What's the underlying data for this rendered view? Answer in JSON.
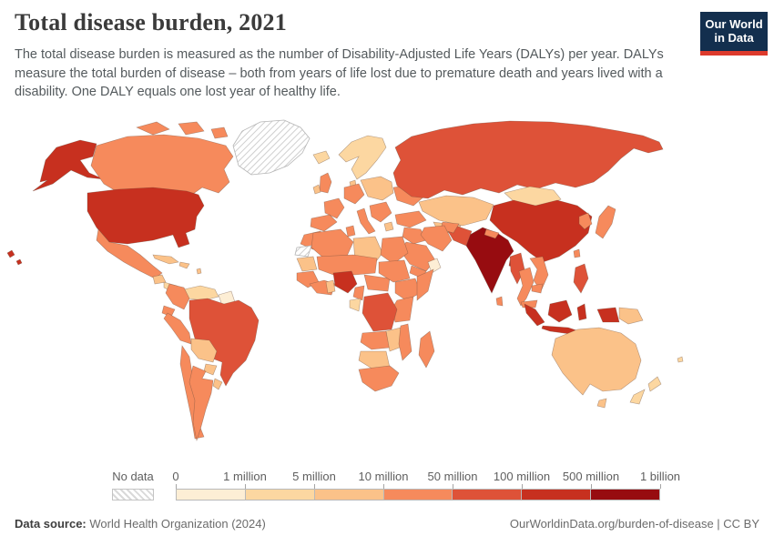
{
  "header": {
    "title": "Total disease burden, 2021",
    "subtitle": "The total disease burden is measured as the number of Disability-Adjusted Life Years (DALYs) per year. DALYs measure the total burden of disease – both from years of life lost due to premature death and years lived with a disability. One DALY equals one lost year of healthy life.",
    "logo": {
      "line1": "Our World",
      "line2": "in Data",
      "bg_color": "#132f4e",
      "stripe_color": "#dd3a2c"
    }
  },
  "legend": {
    "no_data_label": "No data",
    "tick_labels": [
      "0",
      "1 million",
      "5 million",
      "10 million",
      "50 million",
      "100 million",
      "500 million",
      "1 billion"
    ],
    "colors": [
      "#fdeed5",
      "#fcd7a1",
      "#fbc289",
      "#f68a5c",
      "#de5238",
      "#c7301f",
      "#970c10"
    ]
  },
  "footer": {
    "source_label": "Data source:",
    "source_value": " World Health Organization (2024)",
    "right_text": "OurWorldinData.org/burden-of-disease | CC BY"
  },
  "map": {
    "palette": [
      "#fdeed5",
      "#fcd7a1",
      "#fbc289",
      "#f68a5c",
      "#de5238",
      "#c7301f",
      "#970c10"
    ],
    "regions": {
      "alaska": 6,
      "canada": 4,
      "arctic-islands-1": 4,
      "arctic-islands-2": 4,
      "arctic-islands-3": 4,
      "greenland": "nodata",
      "iceland": 2,
      "usa": 6,
      "hawaii-1": 6,
      "hawaii-2": 6,
      "mexico": 4,
      "guatemala": 3,
      "panama-cr": 2,
      "cuba": 3,
      "hispaniola": 3,
      "caribbean": 3,
      "venezuela": 2,
      "guyanas": 1,
      "colombia": 4,
      "ecuador": 4,
      "peru": 4,
      "brazil": 5,
      "bolivia": 3,
      "paraguay": 3,
      "chile": 4,
      "argentina": 4,
      "uruguay": 3,
      "uk": 4,
      "ireland": 3,
      "scandinavia": 2,
      "denmark": 3,
      "france": 4,
      "spain": 4,
      "germany-central": 4,
      "e-europe": 3,
      "ukraine": 4,
      "balkans": 4,
      "italy": 4,
      "greece": 3,
      "russia": 5,
      "kazakhstan": 3,
      "central-asia": 3,
      "mongolia": 2,
      "china": 6,
      "korea": 4,
      "japan": 4,
      "taiwan": 4,
      "india": 7,
      "sri-lanka": 4,
      "pakistan": 5,
      "afghanistan": 4,
      "nepal": 4,
      "bangladesh": 6,
      "myanmar": 5,
      "thailand": 4,
      "vietnam-laos": 4,
      "cambodia": 4,
      "malaysia": 4,
      "turkey": 4,
      "syria-iraq": 4,
      "iran": 4,
      "saudi": 4,
      "yemen": 4,
      "oman": 1,
      "morocco": 4,
      "western-sahara": "nodata",
      "algeria": 4,
      "tunisia": 4,
      "libya": 3,
      "egypt": 4,
      "mauritania": 3,
      "mali-niger-chad": 4,
      "senegal-guinea": 4,
      "west-africa-coast": 4,
      "ghana": 3,
      "nigeria": 6,
      "cameroon": 4,
      "gabon-eq": 2,
      "car-ssudan": 4,
      "sudan": 4,
      "ethiopia": 4,
      "somalia": 4,
      "kenya-tanzania": 4,
      "drc": 5,
      "angola": 4,
      "zambia-zim": 3,
      "mozambique": 4,
      "namibia-bots": 3,
      "south-africa": 4,
      "madagascar": 4,
      "sumatra": 6,
      "java": 6,
      "borneo": 6,
      "sulawesi": 6,
      "west-papua": 6,
      "png": 3,
      "philippines": 5,
      "australia": 3,
      "tasmania": 3,
      "nz-north": 2,
      "nz-south": 2,
      "fiji": 2
    }
  },
  "chart_data": {
    "type": "choropleth",
    "title": "Total disease burden, 2021",
    "unit": "Disability-Adjusted Life Years (DALYs) per year",
    "bin_labels": [
      "0–1 million",
      "1–5 million",
      "5–10 million",
      "10–50 million",
      "50–100 million",
      "100–500 million",
      "500 million–1 billion"
    ],
    "no_data_regions": [
      "Greenland",
      "Western Sahara"
    ],
    "region_bins": {
      "United States": 6,
      "Canada": 4,
      "Mexico": 4,
      "Brazil": 5,
      "Argentina": 4,
      "Chile": 4,
      "Peru": 4,
      "Colombia": 4,
      "Venezuela": 2,
      "Bolivia": 3,
      "Paraguay": 3,
      "Guyana/Suriname": 1,
      "United Kingdom": 4,
      "France": 4,
      "Spain": 4,
      "Germany": 4,
      "Italy": 4,
      "Scandinavia": 2,
      "Eastern Europe": 3,
      "Ukraine": 4,
      "Russia": 5,
      "Kazakhstan": 3,
      "Mongolia": 2,
      "China": 6,
      "India": 7,
      "Pakistan": 5,
      "Bangladesh": 6,
      "Afghanistan": 4,
      "Iran": 4,
      "Turkey": 4,
      "Saudi Arabia": 4,
      "Oman": 1,
      "Egypt": 4,
      "Libya": 3,
      "Algeria": 4,
      "Nigeria": 6,
      "DR Congo": 5,
      "Ethiopia": 4,
      "South Africa": 4,
      "Madagascar": 4,
      "Myanmar": 5,
      "Thailand": 4,
      "Vietnam": 4,
      "Indonesia": 6,
      "Philippines": 5,
      "Japan": 4,
      "South Korea": 4,
      "Papua New Guinea": 3,
      "Australia": 3,
      "New Zealand": 2
    }
  }
}
